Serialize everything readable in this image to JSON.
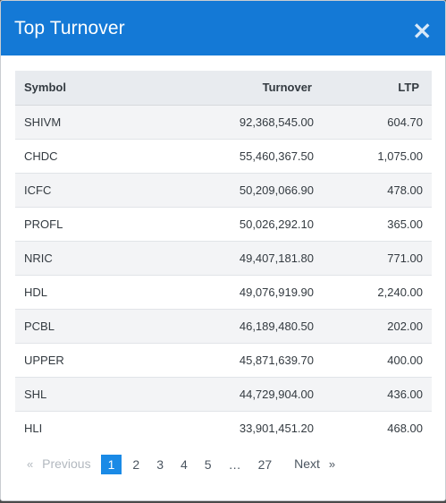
{
  "modal": {
    "title": "Top Turnover",
    "close_glyph": "×"
  },
  "table": {
    "headers": {
      "symbol": "Symbol",
      "turnover": "Turnover",
      "ltp": "LTP"
    },
    "rows": [
      {
        "symbol": "SHIVM",
        "turnover": "92,368,545.00",
        "ltp": "604.70"
      },
      {
        "symbol": "CHDC",
        "turnover": "55,460,367.50",
        "ltp": "1,075.00"
      },
      {
        "symbol": "ICFC",
        "turnover": "50,209,066.90",
        "ltp": "478.00"
      },
      {
        "symbol": "PROFL",
        "turnover": "50,026,292.10",
        "ltp": "365.00"
      },
      {
        "symbol": "NRIC",
        "turnover": "49,407,181.80",
        "ltp": "771.00"
      },
      {
        "symbol": "HDL",
        "turnover": "49,076,919.90",
        "ltp": "2,240.00"
      },
      {
        "symbol": "PCBL",
        "turnover": "46,189,480.50",
        "ltp": "202.00"
      },
      {
        "symbol": "UPPER",
        "turnover": "45,871,639.70",
        "ltp": "400.00"
      },
      {
        "symbol": "SHL",
        "turnover": "44,729,904.00",
        "ltp": "436.00"
      },
      {
        "symbol": "HLI",
        "turnover": "33,901,451.20",
        "ltp": "468.00"
      }
    ]
  },
  "pagination": {
    "prev_chevron": "«",
    "previous": "Previous",
    "pages": [
      "1",
      "2",
      "3",
      "4",
      "5",
      "…",
      "27"
    ],
    "active": "1",
    "next": "Next",
    "next_chevron": "»"
  },
  "colors": {
    "header_bg": "#1479d6",
    "active_page_bg": "#1a8ae6"
  }
}
